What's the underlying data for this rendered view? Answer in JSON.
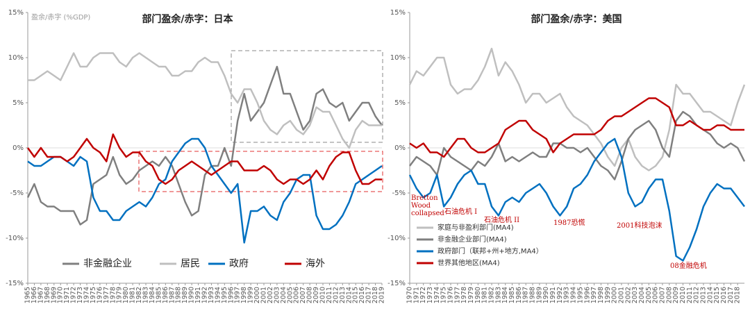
{
  "chart_data": [
    {
      "type": "line",
      "title": "部门盈余/赤字：日本",
      "ylabel": "盈余/赤字 (%GDP)",
      "legend": "lower center",
      "x": [
        1965,
        1966,
        1967,
        1968,
        1969,
        1970,
        1971,
        1972,
        1973,
        1974,
        1975,
        1976,
        1977,
        1978,
        1979,
        1980,
        1981,
        1982,
        1983,
        1984,
        1985,
        1986,
        1987,
        1988,
        1989,
        1990,
        1991,
        1992,
        1993,
        1994,
        1995,
        1996,
        1997,
        1998,
        1999,
        2000,
        2001,
        2002,
        2003,
        2004,
        2005,
        2006,
        2007,
        2008,
        2009,
        2010,
        2011,
        2012,
        2013,
        2014,
        2015,
        2016,
        2017,
        2018,
        2019
      ],
      "xlim": [
        1965,
        2019
      ],
      "xticks": [
        1965,
        1966,
        1967,
        1968,
        1969,
        1970,
        1971,
        1972,
        1973,
        1974,
        1975,
        1976,
        1977,
        1978,
        1979,
        1980,
        1981,
        1982,
        1983,
        1984,
        1985,
        1986,
        1987,
        1988,
        1989,
        1990,
        1991,
        1992,
        1993,
        1994,
        1995,
        1996,
        1997,
        1998,
        1999,
        2000,
        2001,
        2002,
        2003,
        2004,
        2005,
        2006,
        2007,
        2008,
        2009,
        2010,
        2011,
        2012,
        2013,
        2014,
        2015,
        2016,
        2017,
        2018,
        2019
      ],
      "ylim": [
        -15,
        15
      ],
      "yticks": [
        {
          "value": -15,
          "label": "-15%"
        },
        {
          "value": -10,
          "label": "-10%"
        },
        {
          "value": -5,
          "label": "-5%"
        },
        {
          "value": 0,
          "label": "0%"
        },
        {
          "value": 5,
          "label": "5%"
        },
        {
          "value": 10,
          "label": "10%"
        },
        {
          "value": 15,
          "label": "15%"
        }
      ],
      "series": [
        {
          "name": "非金融企业",
          "color": "#7f7f7f",
          "values": [
            -5.5,
            -4,
            -6,
            -6.5,
            -6.5,
            -7,
            -7,
            -7,
            -8.5,
            -8,
            -4,
            -3.5,
            -3,
            -1,
            -3,
            -4,
            -3.5,
            -2.5,
            -2,
            -1.5,
            -2,
            -1,
            -2,
            -4,
            -6,
            -7.5,
            -7,
            -3,
            -2,
            -2,
            0,
            -2,
            3,
            6,
            3,
            4,
            5,
            7,
            9,
            6,
            6,
            4,
            2,
            3,
            6,
            6.5,
            5,
            4.5,
            5,
            3,
            4,
            5,
            5,
            3.5,
            2.5
          ]
        },
        {
          "name": "居民",
          "color": "#bfbfbf",
          "values": [
            7.5,
            7.5,
            8,
            8.5,
            8,
            7.5,
            9,
            10.5,
            9,
            9,
            10,
            10.5,
            10.5,
            10.5,
            9.5,
            9,
            10,
            10.5,
            10,
            9.5,
            9,
            9,
            8,
            8,
            8.5,
            8.5,
            9.5,
            10,
            9.5,
            9.5,
            8,
            6,
            5,
            6.5,
            6.5,
            5,
            3,
            2,
            1.5,
            2.5,
            3,
            2,
            1.5,
            2.5,
            4.5,
            4,
            4,
            2.5,
            1,
            0,
            2,
            3,
            2.5,
            2.5,
            2.5
          ]
        },
        {
          "name": "政府",
          "color": "#0070c0",
          "values": [
            -1.5,
            -2,
            -2,
            -1.5,
            -1,
            -1,
            -1.5,
            -2,
            -1,
            -1.5,
            -5.5,
            -7,
            -7,
            -8,
            -8,
            -7,
            -6.5,
            -6,
            -6.5,
            -5.5,
            -4,
            -3.5,
            -1.5,
            -0.5,
            0.5,
            1,
            1,
            0,
            -2,
            -3,
            -4,
            -5,
            -4,
            -10.5,
            -7,
            -7,
            -6.5,
            -7.5,
            -8,
            -6,
            -5,
            -3.5,
            -3,
            -3,
            -7.5,
            -9,
            -9,
            -8.5,
            -7.5,
            -6,
            -4,
            -3.5,
            -3,
            -2.5,
            -2
          ]
        },
        {
          "name": "海外",
          "color": "#c00000",
          "values": [
            0,
            -1,
            0,
            -1,
            -1,
            -1,
            -1.5,
            -1,
            0,
            1,
            0,
            -0.5,
            -1.5,
            1.5,
            0,
            -1,
            -0.5,
            -0.5,
            -1.5,
            -2,
            -3.5,
            -4,
            -3.5,
            -2.5,
            -2,
            -1.5,
            -2,
            -2.5,
            -3,
            -2.5,
            -2,
            -1.5,
            -1.5,
            -2.5,
            -2.5,
            -2.5,
            -2,
            -2.5,
            -3.5,
            -4,
            -3.5,
            -3.5,
            -4,
            -3.5,
            -2.5,
            -3.5,
            -2,
            -1,
            -0.5,
            -0.5,
            -2.5,
            -4,
            -4,
            -3.5,
            -3.5
          ]
        }
      ]
    },
    {
      "type": "line",
      "title": "部门盈余/赤字：美国",
      "legend": "lower left",
      "x": [
        1970,
        1971,
        1972,
        1973,
        1974,
        1975,
        1976,
        1977,
        1978,
        1979,
        1980,
        1981,
        1982,
        1983,
        1984,
        1985,
        1986,
        1987,
        1988,
        1989,
        1990,
        1991,
        1992,
        1993,
        1994,
        1995,
        1996,
        1997,
        1998,
        1999,
        2000,
        2001,
        2002,
        2003,
        2004,
        2005,
        2006,
        2007,
        2008,
        2009,
        2010,
        2011,
        2012,
        2013,
        2014,
        2015,
        2016,
        2017,
        2018,
        2019
      ],
      "xlim": [
        1970,
        2019
      ],
      "xticks": [
        1970,
        1971,
        1972,
        1973,
        1974,
        1975,
        1976,
        1977,
        1978,
        1979,
        1980,
        1981,
        1982,
        1983,
        1984,
        1985,
        1986,
        1987,
        1988,
        1989,
        1990,
        1991,
        1992,
        1993,
        1994,
        1995,
        1996,
        1997,
        1998,
        1999,
        2000,
        2001,
        2002,
        2003,
        2004,
        2005,
        2006,
        2007,
        2008,
        2009,
        2010,
        2011,
        2012,
        2013,
        2014,
        2015,
        2016,
        2017,
        2018
      ],
      "ylim": [
        -15,
        15
      ],
      "yticks": [
        {
          "value": -15,
          "label": "-15%"
        },
        {
          "value": -10,
          "label": "-10%"
        },
        {
          "value": -5,
          "label": "-5%"
        },
        {
          "value": 0,
          "label": "0%"
        },
        {
          "value": 5,
          "label": "5%"
        },
        {
          "value": 10,
          "label": "10%"
        },
        {
          "value": 15,
          "label": "15%"
        }
      ],
      "series": [
        {
          "name": "家庭与非盈利部门(MA4)",
          "color": "#bfbfbf",
          "values": [
            7,
            8.5,
            8,
            9,
            10,
            10,
            7,
            6,
            6.5,
            6.5,
            7.5,
            9,
            11,
            8,
            9.5,
            8.5,
            7,
            5,
            6,
            6,
            5,
            5.5,
            6,
            4.5,
            3.5,
            3,
            2.5,
            1.5,
            0.5,
            -1,
            -2,
            0,
            1,
            -1,
            -2,
            -2.5,
            -2,
            -1,
            2,
            7,
            6,
            6,
            5,
            4,
            4,
            3.5,
            3,
            2.5,
            5,
            7
          ]
        },
        {
          "name": "非金融企业部门(MA4)",
          "color": "#7f7f7f",
          "values": [
            -2,
            -1,
            -1.5,
            -2,
            -3,
            0,
            -1,
            -1.5,
            -2,
            -2.5,
            -1.5,
            -2,
            -1,
            0.5,
            -1.5,
            -1,
            -1.5,
            -1,
            -0.5,
            -1,
            -1,
            0.5,
            0.5,
            0,
            0,
            -0.5,
            0,
            -1,
            -2,
            -2.5,
            -3.5,
            -1.5,
            1,
            2,
            2.5,
            3,
            2,
            0,
            -1,
            3,
            4,
            3.5,
            2.5,
            2,
            1.5,
            0.5,
            0,
            0.5,
            0,
            -1.5
          ]
        },
        {
          "name": "政府部门（联邦+州+地方,MA4）",
          "color": "#0070c0",
          "values": [
            -3,
            -4.5,
            -5.5,
            -5,
            -3,
            -6.5,
            -5.5,
            -4,
            -3,
            -2.5,
            -4,
            -4,
            -6.5,
            -7.5,
            -6,
            -5.5,
            -6,
            -5,
            -4.5,
            -4,
            -5,
            -6.5,
            -7.5,
            -6.5,
            -4.5,
            -4,
            -3,
            -1.5,
            -0.5,
            0.5,
            1,
            -1,
            -5,
            -6.5,
            -6,
            -4.5,
            -3.5,
            -3.5,
            -7,
            -12,
            -12.5,
            -11,
            -9,
            -6.5,
            -5,
            -4,
            -4.5,
            -4.5,
            -5.5,
            -6.5
          ]
        },
        {
          "name": "世界其他地区(MA4)",
          "color": "#c00000",
          "values": [
            0.5,
            0,
            0.5,
            -0.5,
            -0.5,
            -1,
            0,
            1,
            1,
            0,
            -0.5,
            -0.5,
            0,
            0.5,
            2,
            2.5,
            3,
            3,
            2,
            1.5,
            1,
            -0.5,
            0.5,
            1,
            1.5,
            1.5,
            1.5,
            1.5,
            2,
            3,
            3.5,
            3.5,
            4,
            4.5,
            5,
            5.5,
            5.5,
            5,
            4.5,
            2.5,
            2.5,
            3,
            2.5,
            2,
            2,
            2.5,
            2.5,
            2,
            2,
            2
          ]
        }
      ],
      "annotations": [
        "Bretton Wood collapsed",
        "石油危机 I",
        "石油危机 II",
        "1987恐慌",
        "2001科技泡沫",
        "08金融危机"
      ]
    }
  ]
}
